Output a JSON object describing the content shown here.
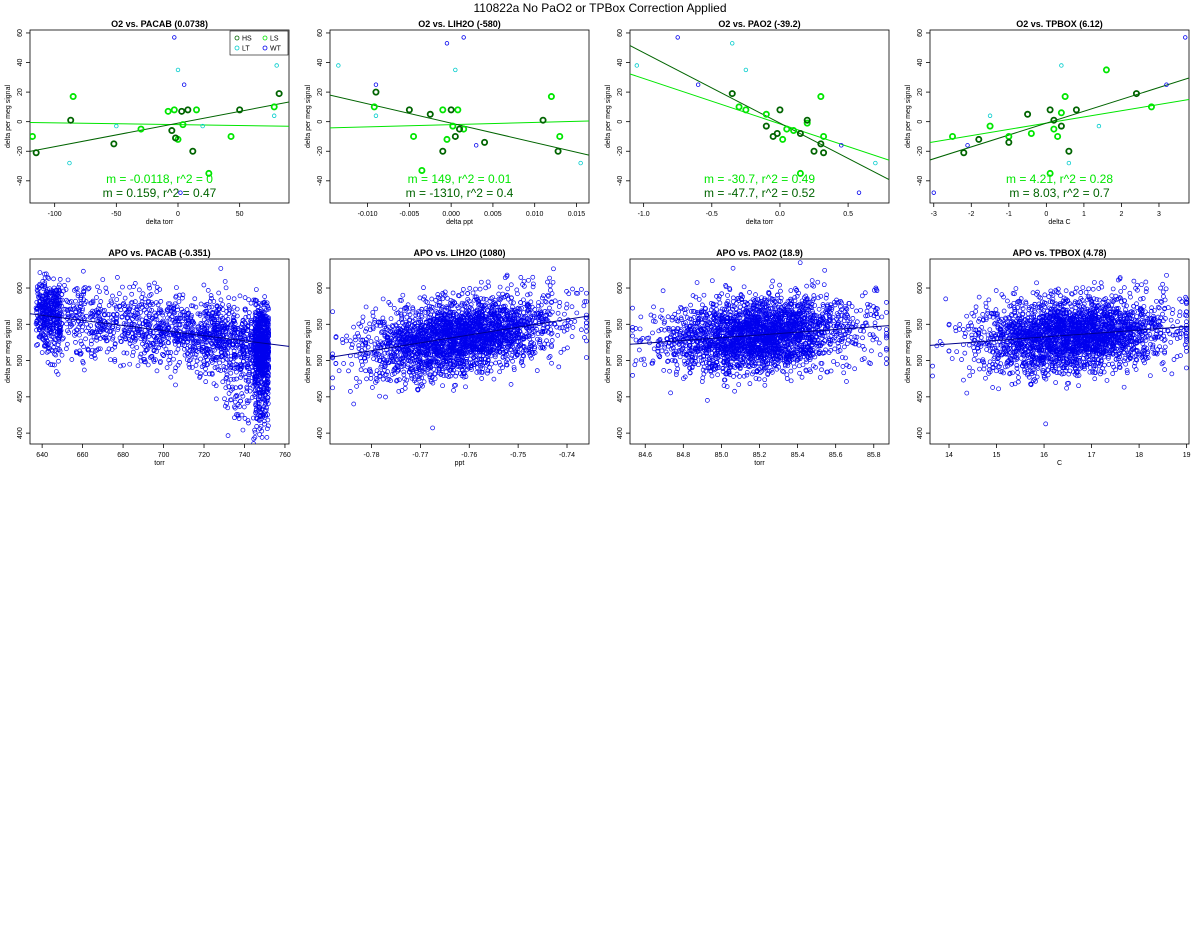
{
  "page": {
    "title": "110822a   No PaO2 or TPBox Correction Applied"
  },
  "colors": {
    "HS": "#006400",
    "LS": "#00e600",
    "LT": "#00cccc",
    "WT": "#0000ee",
    "apo": "#0000ee",
    "fit": "#00008b"
  },
  "legend": {
    "entries": [
      {
        "key": "HS",
        "label": "HS"
      },
      {
        "key": "LS",
        "label": "LS"
      },
      {
        "key": "LT",
        "label": "LT"
      },
      {
        "key": "WT",
        "label": "WT"
      }
    ]
  },
  "chart_data": [
    {
      "type": "scatter",
      "title": "O2 vs. PACAB (0.0738)",
      "xlabel": "delta torr",
      "ylabel": "delta per meg signal",
      "xlim": [
        -120,
        90
      ],
      "ylim": [
        -55,
        62
      ],
      "xticks": [
        -100,
        -50,
        0,
        50
      ],
      "yticks": [
        -40,
        -20,
        0,
        20,
        40,
        60
      ],
      "legend": "top-right",
      "points": {
        "HS": [
          [
            -115,
            -21
          ],
          [
            -87,
            1
          ],
          [
            -52,
            -15
          ],
          [
            -5,
            -6
          ],
          [
            3,
            7
          ],
          [
            8,
            8
          ],
          [
            12,
            -20
          ],
          [
            50,
            8
          ],
          [
            82,
            19
          ],
          [
            -2,
            -11
          ]
        ],
        "LS": [
          [
            -118,
            -10
          ],
          [
            -85,
            17
          ],
          [
            -30,
            -5
          ],
          [
            -8,
            7
          ],
          [
            0,
            -12
          ],
          [
            4,
            -2
          ],
          [
            15,
            8
          ],
          [
            43,
            -10
          ],
          [
            78,
            10
          ],
          [
            25,
            -35
          ],
          [
            -3,
            8
          ]
        ],
        "LT": [
          [
            -88,
            -28
          ],
          [
            -50,
            -3
          ],
          [
            0,
            35
          ],
          [
            80,
            38
          ],
          [
            78,
            4
          ],
          [
            20,
            -3
          ]
        ],
        "WT": [
          [
            -3,
            57
          ],
          [
            5,
            25
          ],
          [
            2,
            -48
          ]
        ]
      },
      "fits": [
        {
          "key": "LS",
          "label": "m = -0.0118, r^2 = 0",
          "slope": -0.0118,
          "intercept": -2
        },
        {
          "key": "HS",
          "label": "m = 0.159, r^2 = 0.47",
          "slope": 0.159,
          "intercept": -1
        }
      ]
    },
    {
      "type": "scatter",
      "title": "O2 vs. LIH2O (-580)",
      "xlabel": "delta ppt",
      "ylabel": "delta per meg signal",
      "xlim": [
        -0.0145,
        0.0165
      ],
      "ylim": [
        -55,
        62
      ],
      "xticks": [
        -0.01,
        -0.005,
        0,
        0.005,
        0.01,
        0.015
      ],
      "yticks": [
        -40,
        -20,
        0,
        20,
        40,
        60
      ],
      "points": {
        "HS": [
          [
            -0.009,
            20
          ],
          [
            -0.005,
            8
          ],
          [
            -0.0025,
            5
          ],
          [
            -0.001,
            -20
          ],
          [
            0,
            8
          ],
          [
            0.0005,
            -10
          ],
          [
            0.001,
            -5
          ],
          [
            0.004,
            -14
          ],
          [
            0.011,
            1
          ],
          [
            0.0128,
            -20
          ]
        ],
        "LS": [
          [
            -0.0092,
            10
          ],
          [
            -0.0045,
            -10
          ],
          [
            -0.001,
            8
          ],
          [
            -0.0005,
            -12
          ],
          [
            0.0002,
            -3
          ],
          [
            0.0015,
            -5
          ],
          [
            0.012,
            17
          ],
          [
            0.013,
            -10
          ],
          [
            -0.0035,
            -33
          ],
          [
            0.0008,
            8
          ]
        ],
        "LT": [
          [
            -0.0135,
            38
          ],
          [
            0.0005,
            35
          ],
          [
            -0.009,
            4
          ],
          [
            0.0155,
            -28
          ]
        ],
        "WT": [
          [
            -0.0005,
            53
          ],
          [
            0.0015,
            57
          ],
          [
            -0.009,
            25
          ],
          [
            0.003,
            -16
          ]
        ]
      },
      "fits": [
        {
          "key": "LS",
          "label": "m = 149, r^2 = 0.01",
          "slope": 149,
          "intercept": -2
        },
        {
          "key": "HS",
          "label": "m = -1310, r^2 = 0.4",
          "slope": -1310,
          "intercept": -1
        }
      ]
    },
    {
      "type": "scatter",
      "title": "O2 vs. PAO2 (-39.2)",
      "xlabel": "delta torr",
      "ylabel": "delta per meg signal",
      "xlim": [
        -1.1,
        0.8
      ],
      "ylim": [
        -55,
        62
      ],
      "xticks": [
        -1.0,
        -0.5,
        0,
        0.5
      ],
      "yticks": [
        -40,
        -20,
        0,
        20,
        40,
        60
      ],
      "points": {
        "HS": [
          [
            -0.35,
            19
          ],
          [
            -0.1,
            -3
          ],
          [
            0.0,
            8
          ],
          [
            -0.05,
            -10
          ],
          [
            -0.02,
            -8
          ],
          [
            0.2,
            1
          ],
          [
            0.25,
            -20
          ],
          [
            0.3,
            -15
          ],
          [
            0.32,
            -21
          ],
          [
            0.15,
            -8
          ]
        ],
        "LS": [
          [
            -0.3,
            10
          ],
          [
            -0.25,
            8
          ],
          [
            -0.1,
            5
          ],
          [
            0.05,
            -5
          ],
          [
            0.1,
            -6
          ],
          [
            0.2,
            -1
          ],
          [
            0.3,
            17
          ],
          [
            0.32,
            -10
          ],
          [
            0.15,
            -35
          ],
          [
            0.02,
            -12
          ]
        ],
        "LT": [
          [
            -1.05,
            38
          ],
          [
            -0.25,
            35
          ],
          [
            0.7,
            -28
          ],
          [
            -0.35,
            53
          ]
        ],
        "WT": [
          [
            -0.75,
            57
          ],
          [
            -0.6,
            25
          ],
          [
            0.45,
            -16
          ],
          [
            0.58,
            -48
          ]
        ]
      },
      "fits": [
        {
          "key": "LS",
          "label": "m = -30.7, r^2 = 0.49",
          "slope": -30.7,
          "intercept": -1.5
        },
        {
          "key": "HS",
          "label": "m = -47.7, r^2 = 0.52",
          "slope": -47.7,
          "intercept": -1
        }
      ]
    },
    {
      "type": "scatter",
      "title": "O2 vs. TPBOX (6.12)",
      "xlabel": "delta C",
      "ylabel": "delta per meg signal",
      "xlim": [
        -3.1,
        3.8
      ],
      "ylim": [
        -55,
        62
      ],
      "xticks": [
        -3,
        -2,
        -1,
        0,
        1,
        2,
        3
      ],
      "yticks": [
        -40,
        -20,
        0,
        20,
        40,
        60
      ],
      "points": {
        "HS": [
          [
            -2.2,
            -21
          ],
          [
            -1.8,
            -12
          ],
          [
            -1,
            -14
          ],
          [
            -0.5,
            5
          ],
          [
            0.1,
            8
          ],
          [
            0.2,
            1
          ],
          [
            0.6,
            -20
          ],
          [
            0.8,
            8
          ],
          [
            0.4,
            -3
          ],
          [
            2.4,
            19
          ]
        ],
        "LS": [
          [
            -2.5,
            -10
          ],
          [
            -1.5,
            -3
          ],
          [
            -1,
            -10
          ],
          [
            -0.4,
            -8
          ],
          [
            0.2,
            -5
          ],
          [
            0.4,
            6
          ],
          [
            0.5,
            17
          ],
          [
            1.6,
            35
          ],
          [
            0.3,
            -10
          ],
          [
            2.8,
            10
          ],
          [
            0.1,
            -35
          ]
        ],
        "LT": [
          [
            -1.5,
            4
          ],
          [
            0.4,
            38
          ],
          [
            0.6,
            -28
          ],
          [
            1.4,
            -3
          ]
        ],
        "WT": [
          [
            -2.1,
            -16
          ],
          [
            -3,
            -48
          ],
          [
            3.7,
            57
          ],
          [
            3.2,
            25
          ]
        ]
      },
      "fits": [
        {
          "key": "LS",
          "label": "m = 4.21, r^2 = 0.28",
          "slope": 4.21,
          "intercept": -1
        },
        {
          "key": "HS",
          "label": "m = 8.03, r^2 = 0.7",
          "slope": 8.03,
          "intercept": -1
        }
      ]
    },
    {
      "type": "scatter",
      "title": "APO vs. PACAB (-0.351)",
      "xlabel": "torr",
      "ylabel": "delta per meg signal",
      "xlim": [
        634,
        762
      ],
      "ylim": [
        385,
        640
      ],
      "xticks": [
        640,
        660,
        680,
        700,
        720,
        740,
        760
      ],
      "yticks": [
        400,
        450,
        500,
        550,
        600
      ],
      "cloud": {
        "x_center": 710,
        "y_mean": 535
      },
      "fit": {
        "slope": -0.351,
        "intercept": 787
      }
    },
    {
      "type": "scatter",
      "title": "APO vs. LIH2O (1080)",
      "xlabel": "ppt",
      "ylabel": "delta per meg signal",
      "xlim": [
        -0.7885,
        -0.7355
      ],
      "ylim": [
        385,
        640
      ],
      "xticks": [
        -0.78,
        -0.77,
        -0.76,
        -0.75,
        -0.74
      ],
      "yticks": [
        400,
        450,
        500,
        550,
        600
      ],
      "cloud": {
        "x_center": -0.762,
        "y_mean": 535
      },
      "fit": {
        "slope": 1080,
        "intercept": 1356
      }
    },
    {
      "type": "scatter",
      "title": "APO vs. PAO2 (18.9)",
      "xlabel": "torr",
      "ylabel": "delta per meg signal",
      "xlim": [
        84.52,
        85.88
      ],
      "ylim": [
        385,
        640
      ],
      "xticks": [
        84.6,
        84.8,
        85.0,
        85.2,
        85.4,
        85.6,
        85.8
      ],
      "yticks": [
        400,
        450,
        500,
        550,
        600
      ],
      "cloud": {
        "x_center": 85.2,
        "y_mean": 535
      },
      "fit": {
        "slope": 18.9,
        "intercept": -1075
      }
    },
    {
      "type": "scatter",
      "title": "APO vs. TPBOX (4.78)",
      "xlabel": "C",
      "ylabel": "delta per meg signal",
      "xlim": [
        13.6,
        19.05
      ],
      "ylim": [
        385,
        640
      ],
      "xticks": [
        14,
        15,
        16,
        17,
        18,
        19
      ],
      "yticks": [
        400,
        450,
        500,
        550,
        600
      ],
      "cloud": {
        "x_center": 16.6,
        "y_mean": 535
      },
      "fit": {
        "slope": 4.78,
        "intercept": 456
      }
    }
  ]
}
